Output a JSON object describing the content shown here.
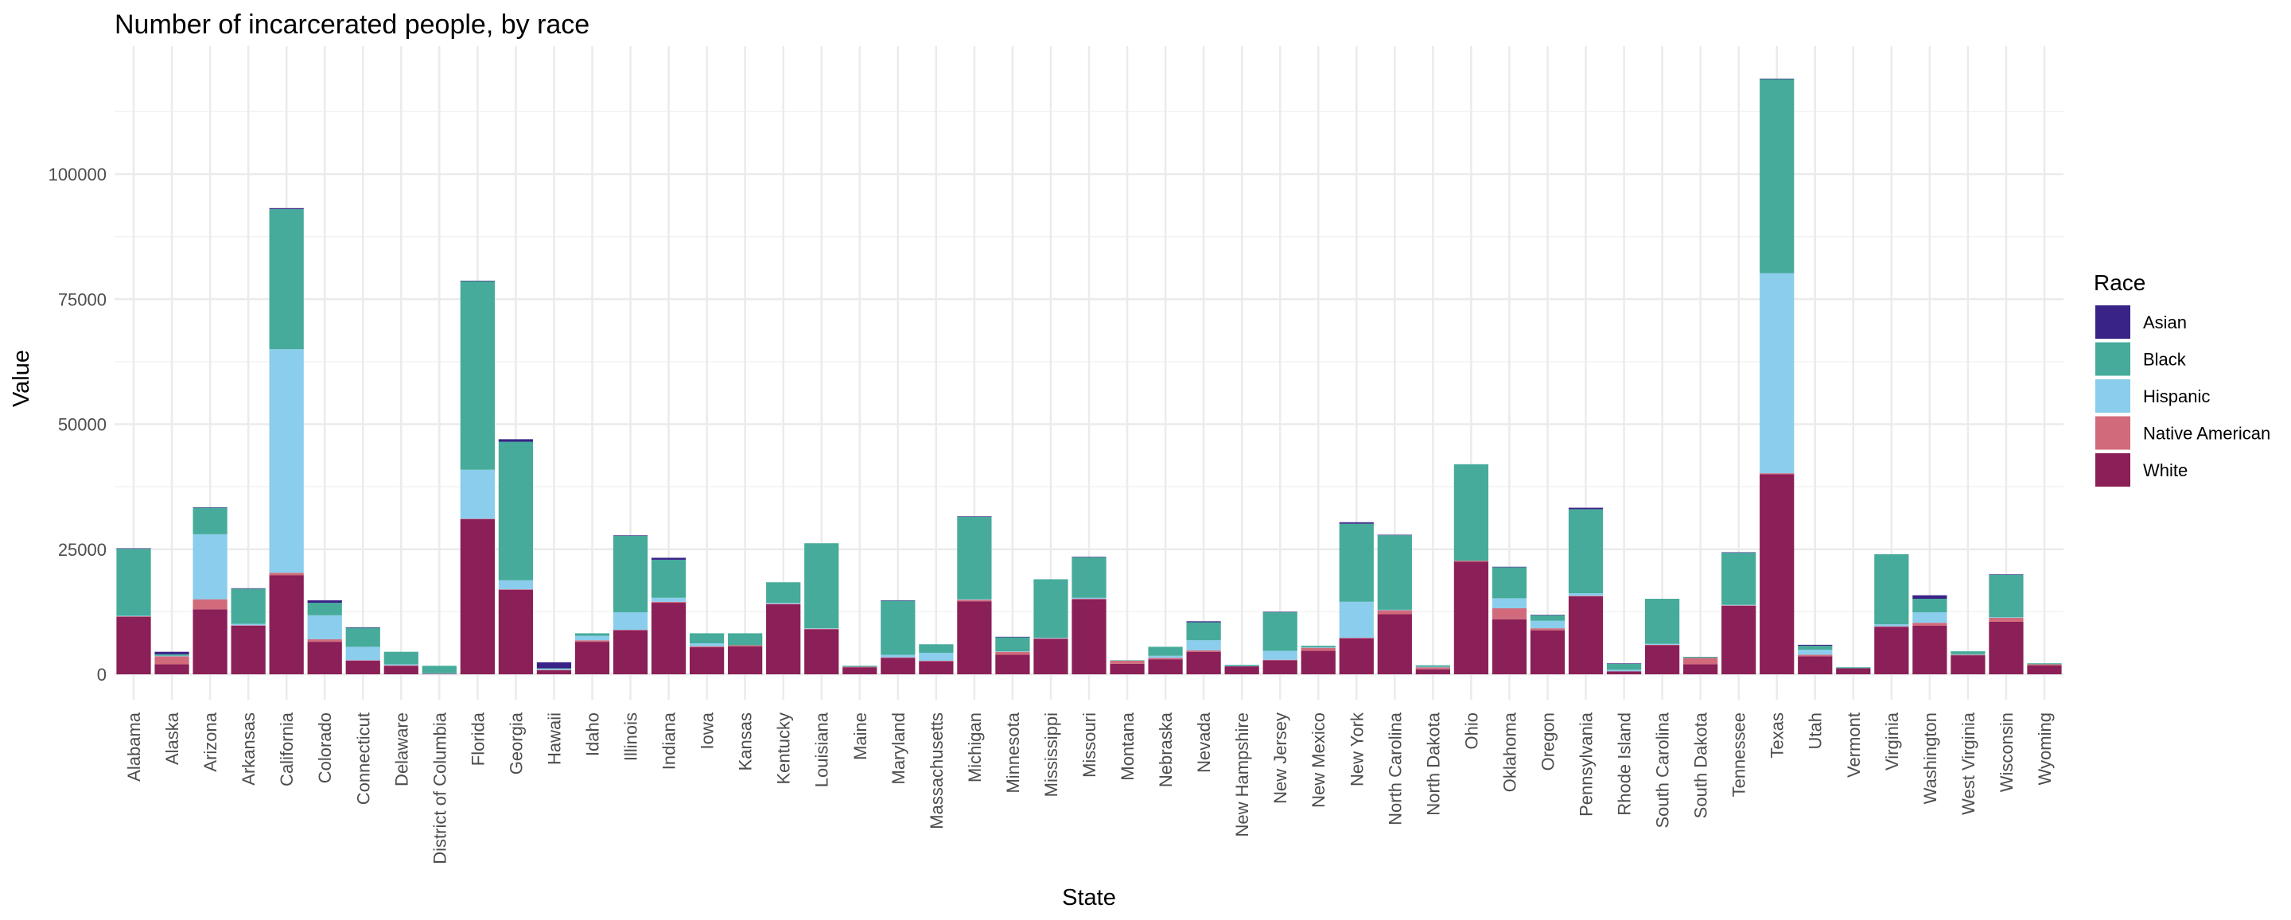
{
  "chart_data": {
    "type": "bar",
    "stacked": true,
    "title": "Number of incarcerated people, by race",
    "xlabel": "State",
    "ylabel": "Value",
    "ylim": [
      0,
      120000
    ],
    "yticks": [
      0,
      25000,
      50000,
      75000,
      100000
    ],
    "grid": true,
    "legend_title": "Race",
    "legend_position": "right",
    "categories": [
      "Alabama",
      "Alaska",
      "Arizona",
      "Arkansas",
      "California",
      "Colorado",
      "Connecticut",
      "Delaware",
      "District of Columbia",
      "Florida",
      "Georgia",
      "Hawaii",
      "Idaho",
      "Illinois",
      "Indiana",
      "Iowa",
      "Kansas",
      "Kentucky",
      "Louisiana",
      "Maine",
      "Maryland",
      "Massachusetts",
      "Michigan",
      "Minnesota",
      "Mississippi",
      "Missouri",
      "Montana",
      "Nebraska",
      "Nevada",
      "New Hampshire",
      "New Jersey",
      "New Mexico",
      "New York",
      "North Carolina",
      "North Dakota",
      "Ohio",
      "Oklahoma",
      "Oregon",
      "Pennsylvania",
      "Rhode Island",
      "South Carolina",
      "South Dakota",
      "Tennessee",
      "Texas",
      "Utah",
      "Vermont",
      "Virginia",
      "Washington",
      "West Virginia",
      "Wisconsin",
      "Wyoming"
    ],
    "series": [
      {
        "name": "White",
        "color": "#8b1f57",
        "values": [
          11500,
          2000,
          13000,
          9700,
          19800,
          6500,
          2700,
          1700,
          100,
          31000,
          16900,
          800,
          6500,
          8800,
          14300,
          5400,
          5600,
          14000,
          9000,
          1400,
          3300,
          2600,
          14600,
          3900,
          7100,
          15000,
          2100,
          3000,
          4500,
          1600,
          2800,
          4700,
          7200,
          12000,
          1000,
          22500,
          11000,
          8800,
          15600,
          600,
          5800,
          2000,
          13700,
          40000,
          3600,
          1200,
          9500,
          9700,
          3800,
          10500,
          1800
        ]
      },
      {
        "name": "Native American",
        "color": "#d16b7b",
        "values": [
          100,
          1600,
          2000,
          100,
          500,
          500,
          100,
          100,
          0,
          100,
          100,
          100,
          300,
          100,
          200,
          200,
          200,
          100,
          100,
          100,
          100,
          100,
          300,
          600,
          100,
          100,
          600,
          300,
          300,
          0,
          100,
          600,
          100,
          800,
          400,
          200,
          2200,
          400,
          100,
          0,
          100,
          1300,
          100,
          200,
          300,
          0,
          100,
          600,
          100,
          800,
          200
        ]
      },
      {
        "name": "Hispanic",
        "color": "#8bcded",
        "values": [
          100,
          100,
          13000,
          300,
          44700,
          4800,
          2700,
          200,
          100,
          9800,
          1800,
          200,
          900,
          3500,
          800,
          600,
          0,
          200,
          100,
          0,
          500,
          1600,
          100,
          100,
          100,
          200,
          0,
          400,
          2000,
          100,
          1800,
          100,
          7200,
          100,
          100,
          0,
          2000,
          1500,
          500,
          300,
          200,
          0,
          100,
          40000,
          1000,
          0,
          400,
          2100,
          100,
          100,
          0
        ]
      },
      {
        "name": "Black",
        "color": "#46ab9a",
        "values": [
          13400,
          300,
          5300,
          7000,
          28000,
          2500,
          3800,
          2500,
          1500,
          37700,
          27700,
          100,
          500,
          15300,
          7600,
          2000,
          2400,
          4100,
          17000,
          200,
          10800,
          1700,
          16500,
          2800,
          11700,
          8100,
          100,
          1800,
          3600,
          200,
          7700,
          300,
          15600,
          14900,
          300,
          19300,
          6200,
          1100,
          16800,
          1200,
          9000,
          200,
          10400,
          38800,
          800,
          200,
          14000,
          2700,
          600,
          8500,
          200
        ]
      },
      {
        "name": "Asian",
        "color": "#3a2387",
        "values": [
          100,
          500,
          100,
          100,
          200,
          500,
          100,
          0,
          0,
          100,
          500,
          1200,
          0,
          100,
          400,
          0,
          0,
          0,
          0,
          0,
          100,
          0,
          100,
          100,
          0,
          100,
          0,
          0,
          200,
          0,
          100,
          0,
          300,
          100,
          0,
          0,
          100,
          100,
          300,
          100,
          0,
          0,
          100,
          100,
          200,
          0,
          0,
          700,
          0,
          100,
          0
        ]
      }
    ],
    "legend_order": [
      "Asian",
      "Black",
      "Hispanic",
      "Native American",
      "White"
    ]
  }
}
